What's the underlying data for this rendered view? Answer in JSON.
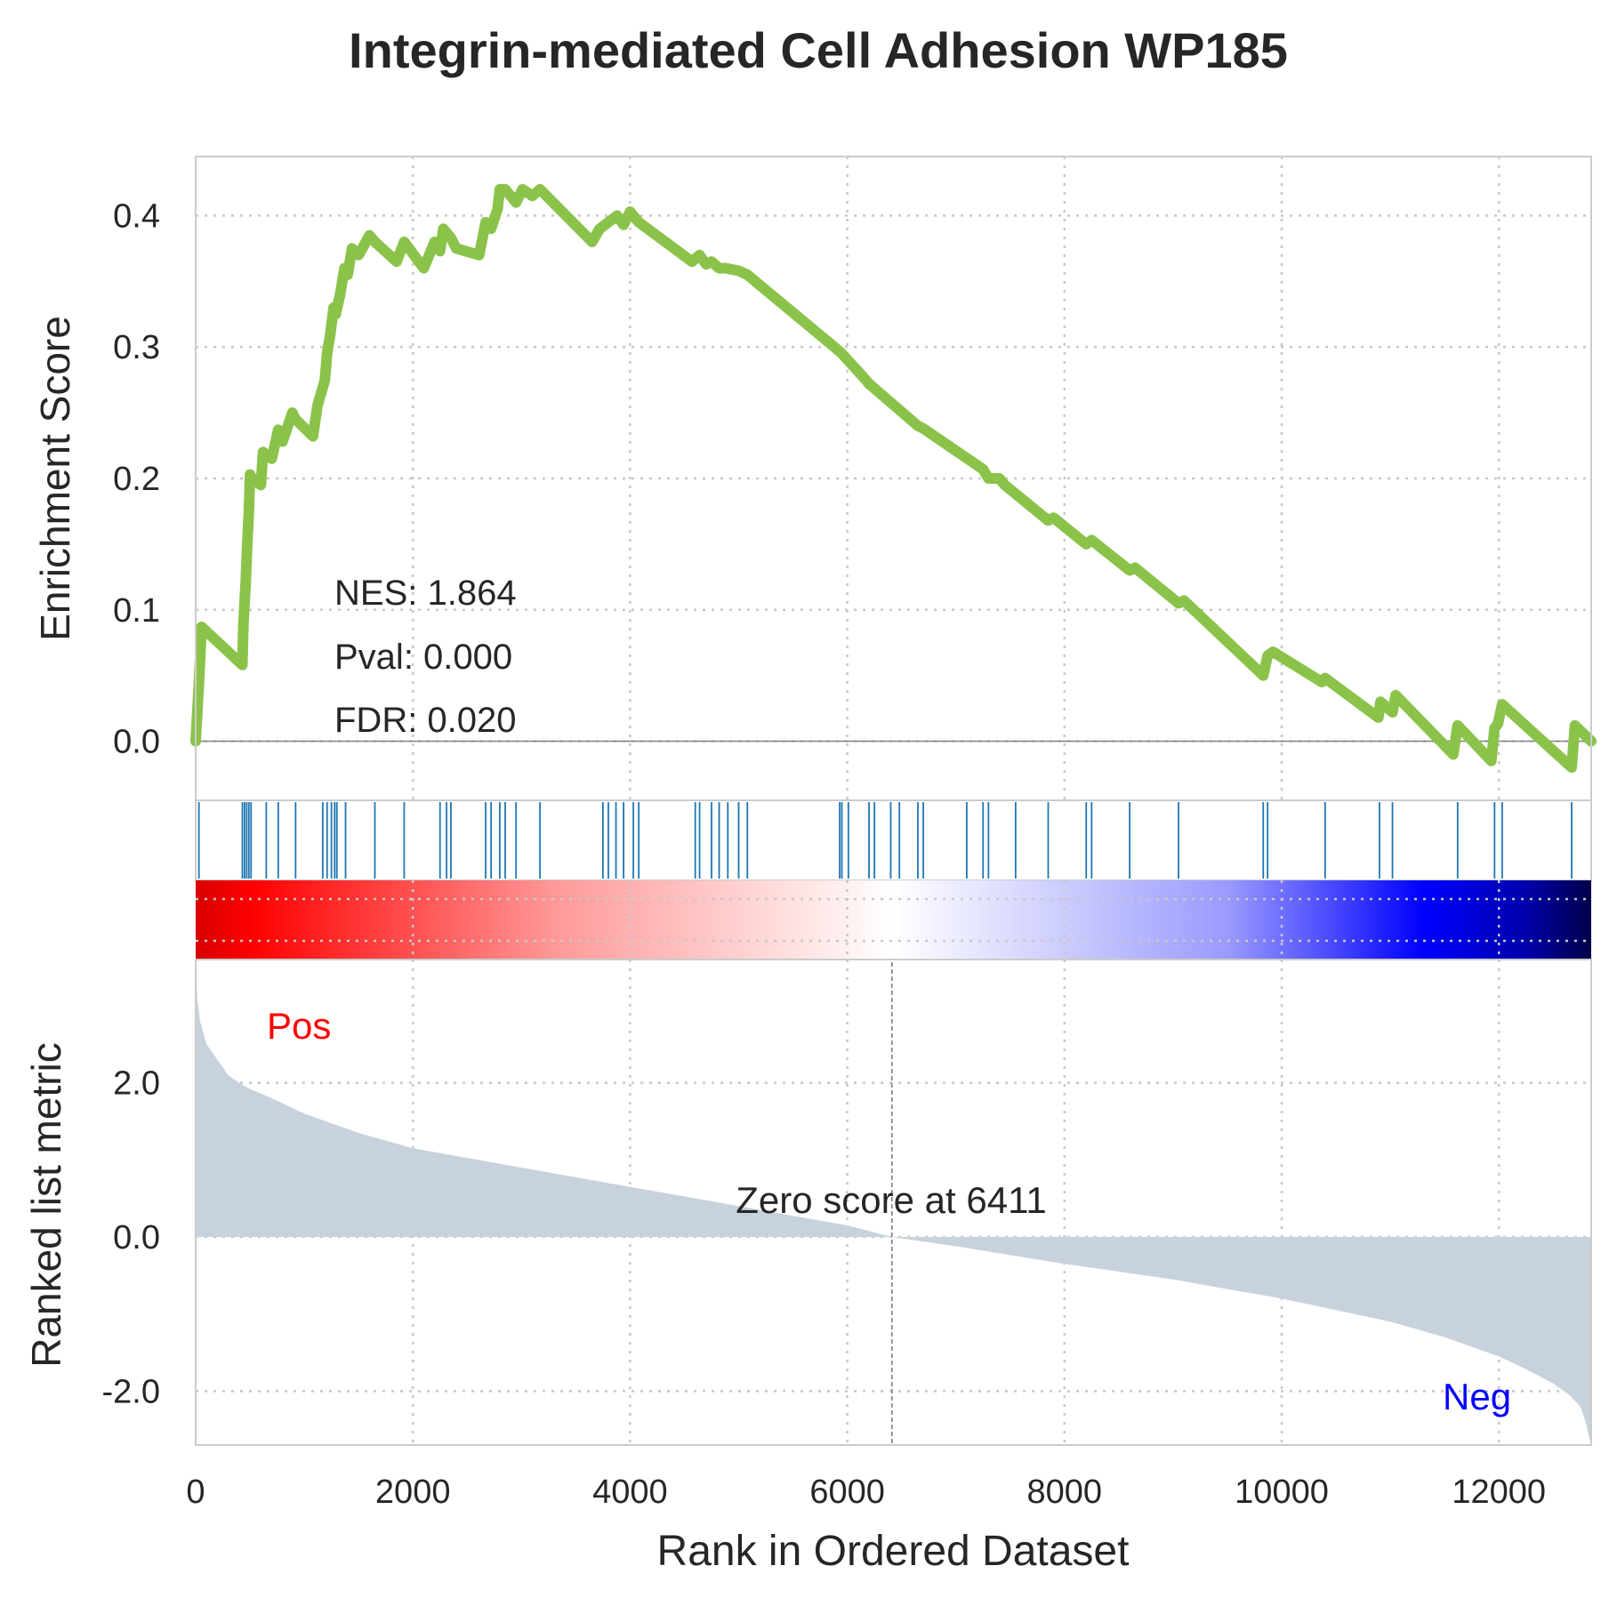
{
  "chart_data": {
    "type": "line",
    "title": "Integrin-mediated Cell Adhesion WP185",
    "xlabel": "Rank in Ordered Dataset",
    "xlim": [
      0,
      12850
    ],
    "xticks": [
      0,
      2000,
      4000,
      6000,
      8000,
      10000,
      12000
    ],
    "grid": true,
    "enrichment": {
      "ylabel": "Enrichment Score",
      "ylim": [
        -0.045,
        0.445
      ],
      "yticks": [
        0.0,
        0.1,
        0.2,
        0.3,
        0.4
      ],
      "ytick_labels": [
        "0.0",
        "0.1",
        "0.2",
        "0.3",
        "0.4"
      ],
      "line_color": "#8bc34a",
      "stats": [
        "NES: 1.864",
        "Pval: 0.000",
        "FDR: 0.020"
      ],
      "x": [
        0,
        30,
        55,
        430,
        440,
        460,
        475,
        490,
        500,
        520,
        600,
        620,
        700,
        760,
        800,
        890,
        920,
        1080,
        1120,
        1190,
        1210,
        1240,
        1270,
        1290,
        1330,
        1370,
        1400,
        1440,
        1500,
        1600,
        1650,
        1850,
        1920,
        2100,
        2150,
        2200,
        2250,
        2280,
        2330,
        2350,
        2400,
        2610,
        2670,
        2720,
        2780,
        2800,
        2850,
        2950,
        3010,
        3100,
        3170,
        3650,
        3720,
        3800,
        3880,
        3940,
        4000,
        4080,
        4570,
        4640,
        4700,
        4750,
        4820,
        4880,
        5000,
        5080,
        5880,
        5950,
        6170,
        6200,
        6650,
        6700,
        7250,
        7300,
        7400,
        7450,
        7850,
        7900,
        8200,
        8250,
        8600,
        8650,
        9050,
        9100,
        9830,
        9870,
        9920,
        10370,
        10400,
        10890,
        10910,
        11020,
        11050,
        11580,
        11620,
        11930,
        11960,
        11990,
        12030,
        12670,
        12700,
        12850
      ],
      "y": [
        0.0,
        0.045,
        0.087,
        0.058,
        0.09,
        0.12,
        0.15,
        0.175,
        0.203,
        0.2,
        0.195,
        0.22,
        0.215,
        0.237,
        0.228,
        0.25,
        0.245,
        0.232,
        0.255,
        0.275,
        0.295,
        0.31,
        0.33,
        0.325,
        0.34,
        0.36,
        0.355,
        0.375,
        0.37,
        0.385,
        0.38,
        0.365,
        0.38,
        0.36,
        0.37,
        0.38,
        0.373,
        0.39,
        0.385,
        0.383,
        0.375,
        0.37,
        0.395,
        0.39,
        0.405,
        0.42,
        0.42,
        0.41,
        0.42,
        0.415,
        0.42,
        0.38,
        0.39,
        0.395,
        0.4,
        0.393,
        0.403,
        0.395,
        0.365,
        0.37,
        0.363,
        0.365,
        0.36,
        0.36,
        0.358,
        0.355,
        0.3,
        0.295,
        0.275,
        0.272,
        0.24,
        0.238,
        0.207,
        0.2,
        0.2,
        0.195,
        0.168,
        0.17,
        0.15,
        0.153,
        0.13,
        0.132,
        0.105,
        0.107,
        0.05,
        0.065,
        0.068,
        0.045,
        0.048,
        0.018,
        0.03,
        0.022,
        0.035,
        -0.01,
        0.012,
        -0.015,
        0.01,
        0.013,
        0.028,
        -0.02,
        0.012,
        0.0
      ]
    },
    "hits": [
      30,
      430,
      450,
      470,
      490,
      510,
      650,
      760,
      920,
      1170,
      1210,
      1250,
      1280,
      1300,
      1380,
      1650,
      1920,
      2250,
      2310,
      2350,
      2670,
      2720,
      2800,
      2850,
      2950,
      3170,
      3750,
      3800,
      3870,
      3940,
      4030,
      4080,
      4600,
      4640,
      4750,
      4820,
      4900,
      5000,
      5080,
      5930,
      5950,
      6010,
      6200,
      6250,
      6400,
      6480,
      6650,
      6700,
      7100,
      7250,
      7300,
      7550,
      7850,
      8200,
      8250,
      8600,
      9050,
      9830,
      9870,
      10400,
      10900,
      11020,
      11620,
      11960,
      12030,
      12670
    ],
    "ranked": {
      "ylabel": "Ranked list metric",
      "ylim": [
        -2.7,
        3.6
      ],
      "yticks": [
        -2.0,
        0.0,
        2.0
      ],
      "ytick_labels": [
        "-2.0",
        "0.0",
        "2.0"
      ],
      "fill_color": "#c8d2dc",
      "x": [
        0,
        15,
        40,
        100,
        200,
        300,
        400,
        500,
        700,
        1000,
        1500,
        2000,
        3000,
        4000,
        5000,
        6000,
        6411,
        7000,
        8000,
        9000,
        10000,
        11000,
        11500,
        12000,
        12300,
        12500,
        12650,
        12750,
        12800,
        12830,
        12850
      ],
      "y": [
        3.6,
        3.1,
        2.8,
        2.5,
        2.3,
        2.1,
        2.0,
        1.92,
        1.8,
        1.6,
        1.35,
        1.15,
        0.9,
        0.65,
        0.4,
        0.15,
        0.0,
        -0.12,
        -0.35,
        -0.55,
        -0.8,
        -1.1,
        -1.3,
        -1.55,
        -1.75,
        -1.9,
        -2.05,
        -2.2,
        -2.4,
        -2.6,
        -2.7
      ],
      "zero_line_x": 6411,
      "zero_label": "Zero score at 6411",
      "pos_label": "Pos",
      "neg_label": "Neg",
      "pos_color": "#ff0000",
      "neg_color": "#0000ff"
    },
    "heatmap_colors": [
      "#ff0000",
      "#ffffff",
      "#0000ff",
      "#00004d"
    ]
  }
}
